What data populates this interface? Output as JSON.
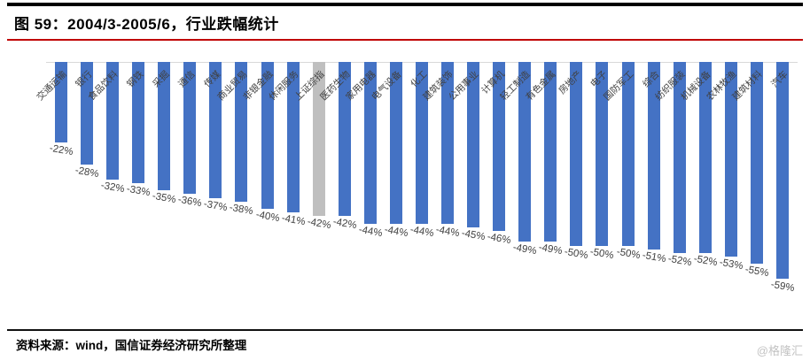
{
  "header": {
    "title": "图 59：2004/3-2005/6，行业跌幅统计"
  },
  "chart_data": {
    "type": "bar",
    "title": "2004/3-2005/6，行业跌幅统计",
    "orientation": "vertical-negative",
    "unit": "%",
    "categories": [
      "交通运输",
      "银行",
      "食品饮料",
      "钢铁",
      "采掘",
      "通信",
      "传媒",
      "商业贸易",
      "非银金融",
      "休闲服务",
      "上证综指",
      "医药生物",
      "家用电器",
      "电气设备",
      "化工",
      "建筑装饰",
      "公用事业",
      "计算机",
      "轻工制造",
      "有色金属",
      "房地产",
      "电子",
      "国防军工",
      "综合",
      "纺织服装",
      "机械设备",
      "农林牧渔",
      "建筑材料",
      "汽车"
    ],
    "values": [
      -22,
      -28,
      -32,
      -33,
      -35,
      -36,
      -37,
      -38,
      -40,
      -41,
      -42,
      -42,
      -44,
      -44,
      -44,
      -44,
      -45,
      -46,
      -49,
      -49,
      -50,
      -50,
      -50,
      -51,
      -52,
      -52,
      -53,
      -55,
      -59
    ],
    "highlight_category": "上证综指",
    "ylim": [
      -59,
      0
    ],
    "grid": "none",
    "legend": "none",
    "bar_color": "#4472c4",
    "highlight_color": "#bfbfbf",
    "axis_color": "#d9d9d9"
  },
  "footer": {
    "source_label": "资料来源：",
    "source_text": "wind，国信证券经济研究所整理",
    "watermark": "@格隆汇"
  },
  "colors": {
    "accent_red": "#c00000",
    "rule_black": "#000000"
  }
}
